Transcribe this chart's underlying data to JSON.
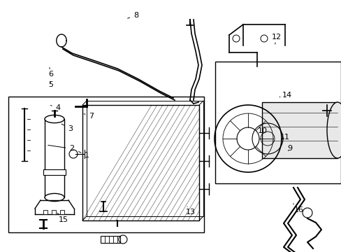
{
  "background_color": "#ffffff",
  "line_color": "#000000",
  "fig_width": 4.89,
  "fig_height": 3.6,
  "dpi": 100,
  "label_fontsize": 8.0,
  "label_positions": {
    "1": [
      0.255,
      0.618,
      0.225,
      0.598
    ],
    "2": [
      0.21,
      0.59,
      0.135,
      0.575
    ],
    "3": [
      0.205,
      0.51,
      0.175,
      0.488
    ],
    "4": [
      0.17,
      0.428,
      0.148,
      0.418
    ],
    "5": [
      0.148,
      0.335,
      0.148,
      0.318
    ],
    "6": [
      0.148,
      0.295,
      0.145,
      0.268
    ],
    "7": [
      0.268,
      0.46,
      0.24,
      0.45
    ],
    "8": [
      0.398,
      0.062,
      0.368,
      0.075
    ],
    "9": [
      0.848,
      0.59,
      0.84,
      0.605
    ],
    "10": [
      0.768,
      0.52,
      0.775,
      0.535
    ],
    "11": [
      0.835,
      0.545,
      0.818,
      0.558
    ],
    "12": [
      0.81,
      0.148,
      0.805,
      0.175
    ],
    "13": [
      0.558,
      0.842,
      0.548,
      0.82
    ],
    "14": [
      0.84,
      0.378,
      0.818,
      0.385
    ],
    "15": [
      0.185,
      0.872,
      0.168,
      0.845
    ],
    "16": [
      0.875,
      0.832,
      0.858,
      0.808
    ]
  }
}
